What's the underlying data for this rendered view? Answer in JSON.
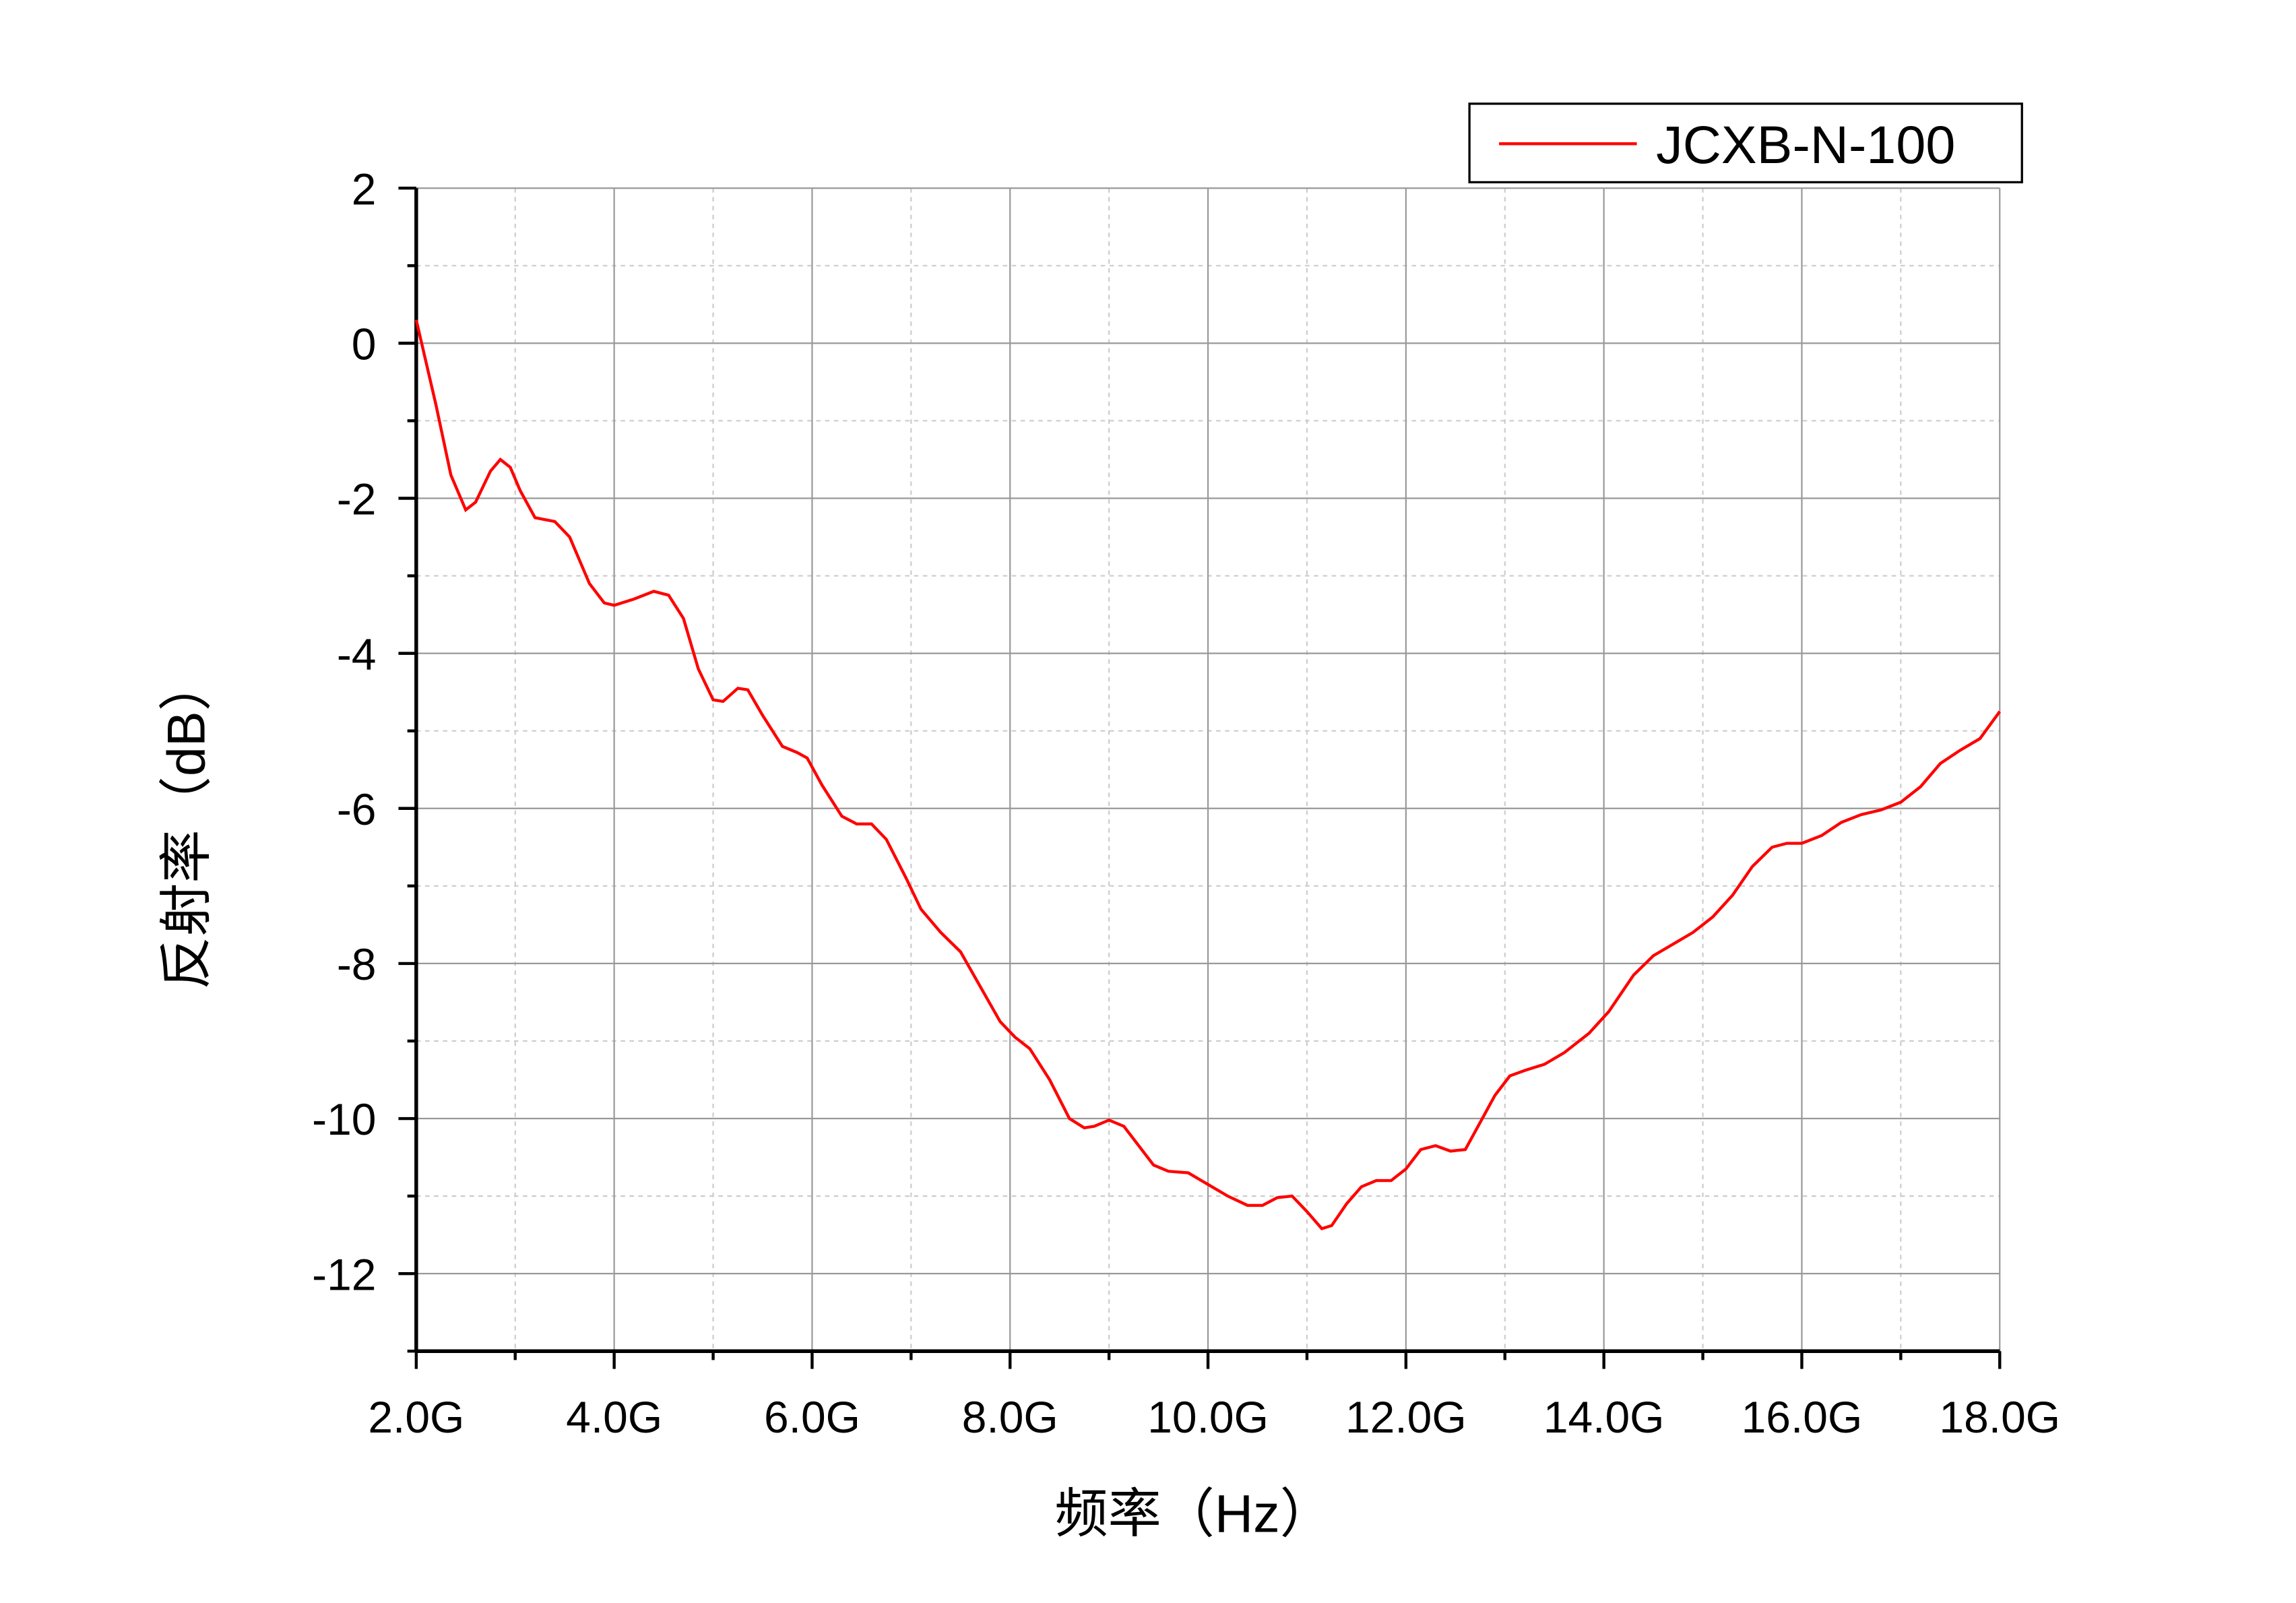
{
  "chart_data": {
    "type": "line",
    "x_label": "频率（Hz）",
    "y_label": "反射率（dB）",
    "x": [
      2.0,
      2.2,
      2.35,
      2.5,
      2.6,
      2.75,
      2.85,
      2.95,
      3.05,
      3.2,
      3.4,
      3.55,
      3.75,
      3.9,
      4.0,
      4.2,
      4.4,
      4.55,
      4.7,
      4.85,
      5.0,
      5.1,
      5.25,
      5.35,
      5.5,
      5.7,
      5.85,
      5.95,
      6.1,
      6.3,
      6.45,
      6.6,
      6.75,
      6.95,
      7.1,
      7.3,
      7.5,
      7.7,
      7.9,
      8.05,
      8.2,
      8.4,
      8.6,
      8.75,
      8.85,
      9.0,
      9.15,
      9.3,
      9.45,
      9.6,
      9.8,
      10.0,
      10.2,
      10.4,
      10.55,
      10.7,
      10.85,
      11.0,
      11.15,
      11.25,
      11.4,
      11.55,
      11.7,
      11.85,
      12.0,
      12.15,
      12.3,
      12.45,
      12.6,
      12.75,
      12.9,
      13.05,
      13.2,
      13.4,
      13.6,
      13.85,
      14.05,
      14.3,
      14.5,
      14.7,
      14.9,
      15.1,
      15.3,
      15.5,
      15.7,
      15.85,
      16.0,
      16.2,
      16.4,
      16.6,
      16.8,
      17.0,
      17.2,
      17.4,
      17.6,
      17.8,
      18.0
    ],
    "series": [
      {
        "name": "JCXB-N-100",
        "color": "#ff0000",
        "values": [
          0.3,
          -0.8,
          -1.7,
          -2.15,
          -2.05,
          -1.65,
          -1.5,
          -1.6,
          -1.9,
          -2.25,
          -2.3,
          -2.5,
          -3.1,
          -3.35,
          -3.38,
          -3.3,
          -3.2,
          -3.25,
          -3.55,
          -4.2,
          -4.6,
          -4.62,
          -4.45,
          -4.47,
          -4.8,
          -5.2,
          -5.28,
          -5.35,
          -5.7,
          -6.1,
          -6.2,
          -6.2,
          -6.4,
          -6.9,
          -7.3,
          -7.6,
          -7.85,
          -8.3,
          -8.75,
          -8.95,
          -9.1,
          -9.5,
          -10.0,
          -10.12,
          -10.1,
          -10.02,
          -10.1,
          -10.35,
          -10.6,
          -10.68,
          -10.7,
          -10.85,
          -11.0,
          -11.12,
          -11.12,
          -11.02,
          -11.0,
          -11.2,
          -11.42,
          -11.38,
          -11.1,
          -10.88,
          -10.8,
          -10.8,
          -10.65,
          -10.4,
          -10.35,
          -10.42,
          -10.4,
          -10.05,
          -9.7,
          -9.45,
          -9.38,
          -9.3,
          -9.15,
          -8.9,
          -8.62,
          -8.15,
          -7.9,
          -7.75,
          -7.6,
          -7.4,
          -7.12,
          -6.75,
          -6.5,
          -6.45,
          -6.45,
          -6.35,
          -6.18,
          -6.08,
          -6.02,
          -5.92,
          -5.72,
          -5.42,
          -5.25,
          -5.1,
          -4.75
        ]
      }
    ],
    "xlim": [
      2,
      18
    ],
    "xticks": [
      {
        "value": 2,
        "label": "2.0G"
      },
      {
        "value": 4,
        "label": "4.0G"
      },
      {
        "value": 6,
        "label": "6.0G"
      },
      {
        "value": 8,
        "label": "8.0G"
      },
      {
        "value": 10,
        "label": "10.0G"
      },
      {
        "value": 12,
        "label": "12.0G"
      },
      {
        "value": 14,
        "label": "14.0G"
      },
      {
        "value": 16,
        "label": "16.0G"
      },
      {
        "value": 18,
        "label": "18.0G"
      }
    ],
    "ylim": [
      -13,
      2
    ],
    "yticks": [
      2,
      0,
      -2,
      -4,
      -6,
      -8,
      -10,
      -12
    ],
    "grid": true,
    "legend": "top-right"
  }
}
